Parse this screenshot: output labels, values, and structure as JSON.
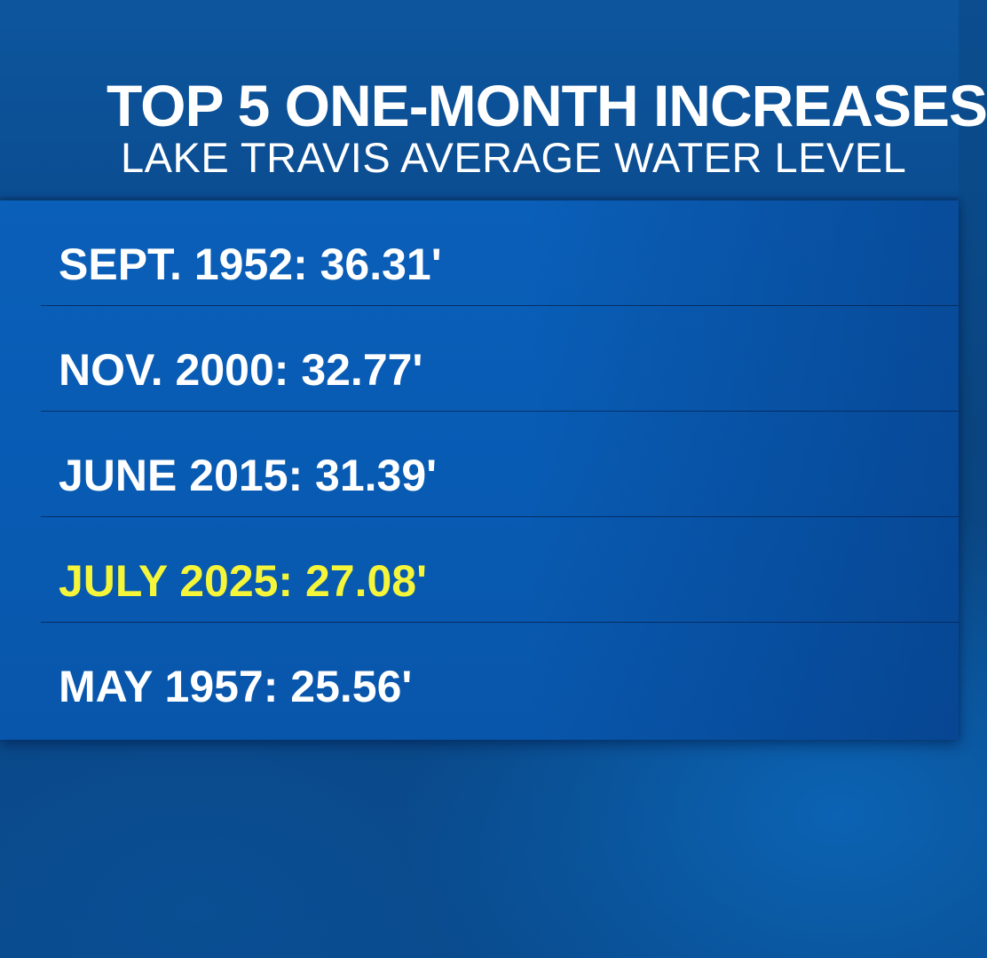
{
  "header": {
    "title": "TOP 5 ONE-MONTH INCREASES",
    "subtitle": "LAKE TRAVIS AVERAGE WATER LEVEL"
  },
  "list": {
    "items": [
      {
        "label": "SEPT. 1952: 36.31'",
        "highlighted": false
      },
      {
        "label": "NOV. 2000: 32.77'",
        "highlighted": false
      },
      {
        "label": "JUNE 2015: 31.39'",
        "highlighted": false
      },
      {
        "label": "JULY 2025: 27.08'",
        "highlighted": true
      },
      {
        "label": "MAY 1957: 25.56'",
        "highlighted": false
      }
    ]
  },
  "colors": {
    "highlight_text": "#f5f53a",
    "text": "#ffffff",
    "panel": "#085bb3"
  }
}
